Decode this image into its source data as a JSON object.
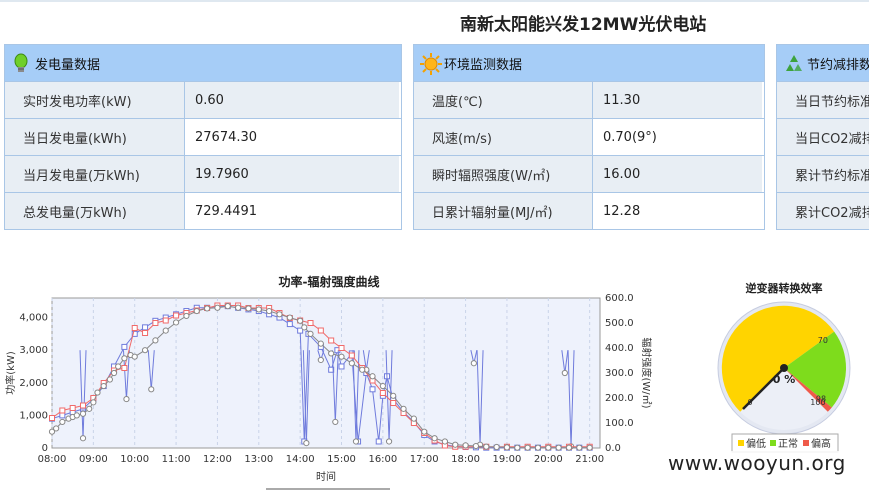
{
  "page_title": "南新太阳能兴发12MW光伏电站",
  "panels": [
    {
      "title": "发电量数据",
      "icon": "bulb-icon",
      "rows": [
        {
          "label": "实时发电功率(kW)",
          "value": "0.60"
        },
        {
          "label": "当日发电量(kWh)",
          "value": "27674.30"
        },
        {
          "label": "当月发电量(万kWh)",
          "value": "19.7960"
        },
        {
          "label": "总发电量(万kWh)",
          "value": "729.4491"
        }
      ]
    },
    {
      "title": "环境监测数据",
      "icon": "sun-icon",
      "rows": [
        {
          "label": "温度(℃)",
          "value": "11.30"
        },
        {
          "label": "风速(m/s)",
          "value": "0.70(9°)"
        },
        {
          "label": "瞬时辐照强度(W/㎡)",
          "value": "16.00"
        },
        {
          "label": "日累计辐射量(MJ/㎡)",
          "value": "12.28"
        }
      ]
    },
    {
      "title": "节约减排数",
      "icon": "recycle-icon",
      "rows": [
        {
          "label": "当日节约标准",
          "value": ""
        },
        {
          "label": "当日CO2减排",
          "value": ""
        },
        {
          "label": "累计节约标准",
          "value": ""
        },
        {
          "label": "累计CO2减排",
          "value": ""
        }
      ]
    }
  ],
  "chart_data": [
    {
      "type": "line",
      "title": "功率-辐射强度曲线",
      "xlabel": "时间",
      "ylabel": "功率(kW)",
      "y2label": "辐射强度(W/㎡)",
      "x_ticks": [
        "08:00",
        "09:00",
        "10:00",
        "11:00",
        "12:00",
        "13:00",
        "14:00",
        "15:00",
        "16:00",
        "17:00",
        "18:00",
        "19:00",
        "20:00",
        "21:00"
      ],
      "y_ticks": [
        "0",
        "1,000",
        "2,000",
        "3,000",
        "4,000"
      ],
      "y2_ticks": [
        "0.0",
        "100.0",
        "200.0",
        "300.0",
        "400.0",
        "500.0",
        "600.0"
      ],
      "xlim": [
        8,
        21.25
      ],
      "ylim": [
        0,
        4600
      ],
      "y2lim": [
        0,
        600
      ],
      "grid": true,
      "series": [
        {
          "axis": "left",
          "color": "#6f7bdc",
          "marker": "square",
          "x": [
            8,
            8.25,
            8.5,
            8.75,
            9,
            9.25,
            9.5,
            9.75,
            10,
            10.25,
            10.5,
            10.75,
            11,
            11.25,
            11.5,
            11.75,
            12,
            12.25,
            12.5,
            12.75,
            13,
            13.25,
            13.5,
            13.75,
            14,
            14.1,
            14.2,
            14.5,
            14.75,
            14.9,
            15,
            15.25,
            15.4,
            15.6,
            15.75,
            15.9,
            16,
            16.1,
            16.25,
            16.5,
            16.75,
            17,
            17.25,
            17.5,
            17.75,
            18,
            18.25,
            18.5,
            18.75,
            19,
            19.25,
            19.5,
            19.75,
            20,
            20.25,
            20.5,
            20.75,
            21
          ],
          "y": [
            900,
            1000,
            1100,
            1200,
            1500,
            1900,
            2500,
            3100,
            3500,
            3700,
            3900,
            4000,
            4100,
            4200,
            4300,
            4300,
            4350,
            4350,
            4300,
            4250,
            4200,
            4100,
            4000,
            3800,
            3600,
            200,
            3500,
            3100,
            2400,
            3000,
            2500,
            2900,
            200,
            2300,
            1800,
            200,
            1600,
            2200,
            1500,
            1100,
            800,
            400,
            200,
            100,
            50,
            30,
            20,
            10,
            10,
            10,
            10,
            10,
            10,
            10,
            10,
            10,
            10,
            10
          ],
          "spikes": [
            [
              8.75,
              300
            ],
            [
              9.8,
              1500
            ],
            [
              10.4,
              1800
            ],
            [
              14.15,
              150
            ],
            [
              14.5,
              2700
            ],
            [
              14.85,
              800
            ],
            [
              15.35,
              200
            ],
            [
              15.6,
              2400
            ],
            [
              16.15,
              200
            ],
            [
              18.2,
              2600
            ],
            [
              18.35,
              100
            ],
            [
              20.4,
              2300
            ],
            [
              20.55,
              50
            ]
          ]
        },
        {
          "axis": "right",
          "color": "#f06a6a",
          "marker": "square",
          "x": [
            8,
            8.25,
            8.5,
            8.75,
            9,
            9.25,
            9.5,
            9.75,
            10,
            10.25,
            10.5,
            10.75,
            11,
            11.25,
            11.5,
            11.75,
            12,
            12.25,
            12.5,
            12.75,
            13,
            13.25,
            13.5,
            13.75,
            14,
            14.25,
            14.5,
            14.75,
            15,
            15.25,
            15.5,
            15.75,
            16,
            16.25,
            16.5,
            16.75,
            17,
            17.25,
            17.5,
            17.75,
            18,
            18.5,
            19,
            19.5,
            20,
            20.5,
            21
          ],
          "y": [
            120,
            150,
            160,
            170,
            200,
            260,
            310,
            320,
            480,
            460,
            500,
            510,
            530,
            540,
            550,
            560,
            570,
            570,
            570,
            560,
            560,
            560,
            540,
            520,
            510,
            500,
            470,
            430,
            400,
            370,
            320,
            270,
            220,
            180,
            140,
            100,
            60,
            30,
            10,
            5,
            5,
            5,
            5,
            5,
            5,
            5,
            5
          ]
        },
        {
          "axis": "left",
          "color": "#888888",
          "marker": "circle",
          "x": [
            8,
            8.1,
            8.25,
            8.4,
            8.5,
            8.6,
            8.75,
            8.9,
            9,
            9.1,
            9.25,
            9.4,
            9.5,
            9.6,
            9.75,
            9.9,
            10,
            10.25,
            10.5,
            10.75,
            11,
            11.25,
            11.5,
            11.75,
            12,
            12.25,
            12.5,
            12.75,
            13,
            13.25,
            13.5,
            13.75,
            14,
            14.1,
            14.25,
            14.5,
            14.75,
            15,
            15.25,
            15.5,
            15.75,
            16,
            16.25,
            16.5,
            16.75,
            17,
            17.25,
            17.5,
            17.75,
            18,
            18.25,
            18.5,
            18.75,
            19,
            19.25,
            19.5,
            19.75,
            20,
            20.25,
            20.5,
            20.75,
            21
          ],
          "y": [
            500,
            600,
            800,
            900,
            950,
            1000,
            1050,
            1200,
            1400,
            1700,
            1900,
            2100,
            2300,
            2500,
            2750,
            2850,
            2800,
            3000,
            3300,
            3600,
            3850,
            4050,
            4200,
            4280,
            4300,
            4350,
            4300,
            4280,
            4250,
            4200,
            4100,
            4000,
            3900,
            3700,
            3500,
            3200,
            2900,
            2800,
            2600,
            2400,
            2200,
            1900,
            1600,
            1200,
            900,
            500,
            300,
            200,
            100,
            80,
            60,
            40,
            30,
            20,
            10,
            10,
            10,
            10,
            10,
            10,
            10,
            10
          ]
        }
      ]
    },
    {
      "type": "gauge",
      "title": "逆变器转换效率",
      "value": 0,
      "value_label": "0 %",
      "min": 0,
      "max": 100,
      "tick_labels": [
        "0",
        "70",
        "98",
        "100"
      ],
      "bands": [
        {
          "name": "偏低",
          "from": 0,
          "to": 70,
          "color": "#ffd400"
        },
        {
          "name": "正常",
          "from": 70,
          "to": 98,
          "color": "#7edc1c"
        },
        {
          "name": "偏高",
          "from": 98,
          "to": 100,
          "color": "#ef5a4a"
        }
      ],
      "legend": [
        "偏低",
        "正常",
        "偏高"
      ]
    }
  ],
  "watermark": "www.wooyun.org"
}
